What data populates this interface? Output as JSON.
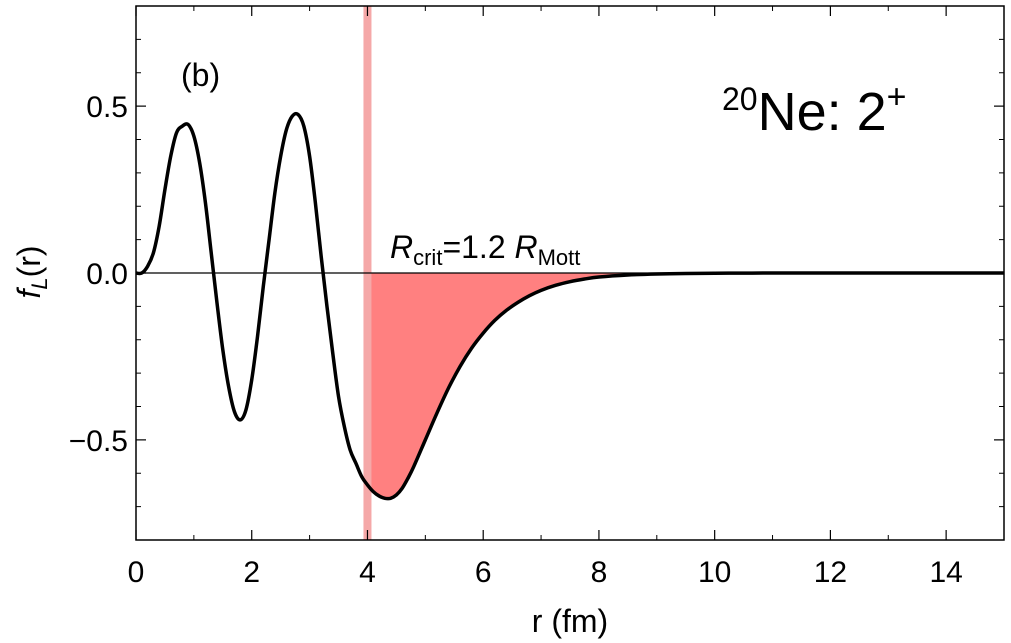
{
  "chart_data": {
    "type": "line",
    "panel_label": "(b)",
    "title": {
      "superscript": "20",
      "nucleus": "Ne: 2",
      "state_superscript": "+"
    },
    "annotation": {
      "symbol": "R",
      "sub1": "crit",
      "middle": "=1.2 ",
      "symbol2": "R",
      "sub2": "Mott"
    },
    "xlabel": "r (fm)",
    "ylabel": {
      "f": "f",
      "sub": "L",
      "arg": "(r)"
    },
    "xlim": [
      0,
      15
    ],
    "ylim": [
      -0.8,
      0.8
    ],
    "x_ticks": [
      0,
      2,
      4,
      6,
      8,
      10,
      12,
      14
    ],
    "x_tick_labels": [
      "0",
      "2",
      "4",
      "6",
      "8",
      "10",
      "12",
      "14"
    ],
    "y_ticks": [
      -0.5,
      0.0,
      0.5
    ],
    "y_tick_labels": [
      "−0.5",
      "0.0",
      "0.5"
    ],
    "critical_r": 4.0,
    "series": [
      {
        "color": "#000000",
        "x": [
          0.0,
          0.1,
          0.2,
          0.3,
          0.4,
          0.5,
          0.6,
          0.7,
          0.8,
          0.9,
          1.0,
          1.1,
          1.2,
          1.3,
          1.4,
          1.5,
          1.6,
          1.7,
          1.8,
          1.9,
          2.0,
          2.1,
          2.2,
          2.3,
          2.4,
          2.5,
          2.6,
          2.7,
          2.8,
          2.9,
          3.0,
          3.1,
          3.2,
          3.3,
          3.4,
          3.5,
          3.6,
          3.7,
          3.8,
          3.9,
          4.0,
          4.1,
          4.2,
          4.3,
          4.4,
          4.5,
          4.6,
          4.7,
          4.8,
          5.0,
          5.2,
          5.4,
          5.6,
          5.8,
          6.0,
          6.2,
          6.4,
          6.6,
          6.8,
          7.0,
          7.25,
          7.5,
          7.75,
          8.0,
          8.5,
          9.0,
          9.5,
          10.0,
          10.5,
          11.0,
          12.0,
          13.0,
          14.0,
          15.0
        ],
        "y": [
          0.0,
          0.0,
          0.02,
          0.06,
          0.14,
          0.25,
          0.35,
          0.42,
          0.44,
          0.445,
          0.41,
          0.33,
          0.21,
          0.06,
          -0.09,
          -0.23,
          -0.34,
          -0.415,
          -0.44,
          -0.41,
          -0.32,
          -0.19,
          -0.04,
          0.1,
          0.24,
          0.35,
          0.43,
          0.47,
          0.475,
          0.44,
          0.35,
          0.21,
          0.05,
          -0.1,
          -0.24,
          -0.37,
          -0.46,
          -0.53,
          -0.57,
          -0.61,
          -0.635,
          -0.655,
          -0.668,
          -0.675,
          -0.675,
          -0.665,
          -0.645,
          -0.615,
          -0.58,
          -0.5,
          -0.42,
          -0.345,
          -0.28,
          -0.225,
          -0.18,
          -0.142,
          -0.112,
          -0.088,
          -0.068,
          -0.052,
          -0.037,
          -0.026,
          -0.018,
          -0.012,
          -0.006,
          -0.003,
          -0.0015,
          -0.0007,
          -0.0003,
          -0.0001,
          0.0,
          0.0,
          0.0,
          0.0
        ]
      }
    ],
    "colors": {
      "curve": "#000000",
      "fill": "#ff8080",
      "band": "#f5a8a8",
      "axis": "#000000"
    },
    "grid": false
  }
}
